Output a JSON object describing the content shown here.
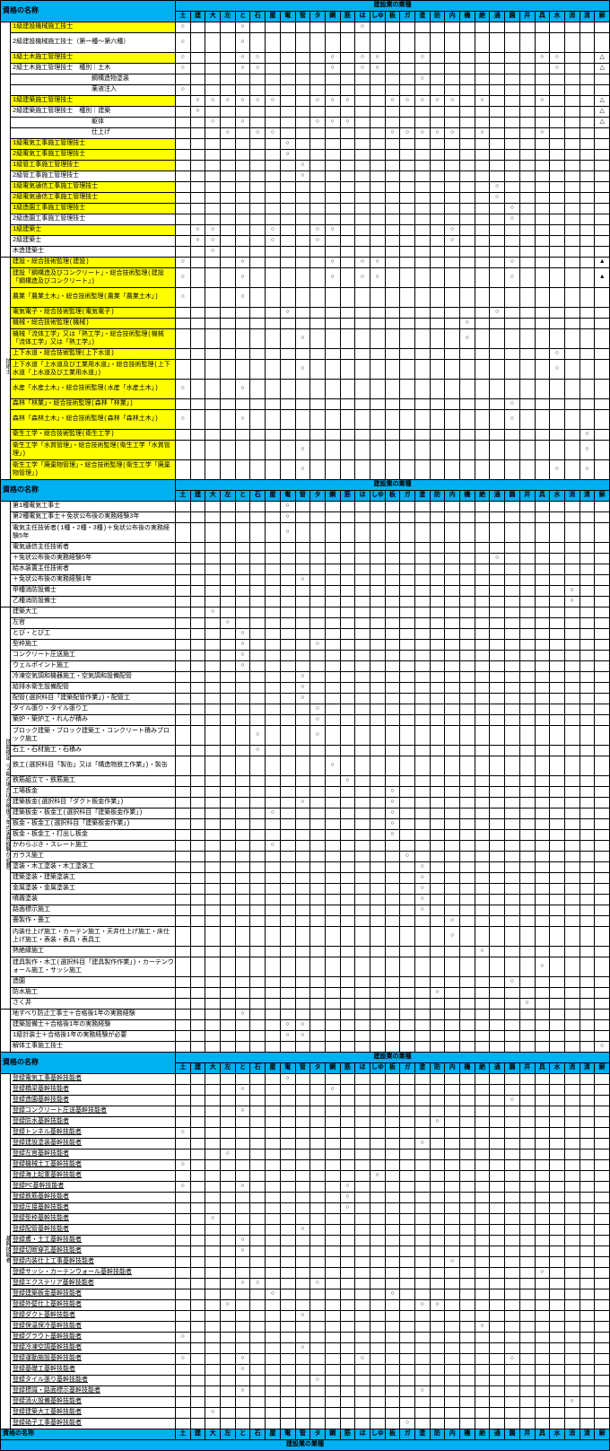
{
  "columns": [
    "土",
    "建",
    "大",
    "左",
    "と",
    "石",
    "屋",
    "電",
    "管",
    "タ",
    "鋼",
    "筋",
    "ほ",
    "しゆ",
    "板",
    "ガ",
    "塗",
    "防",
    "内",
    "機",
    "絶",
    "通",
    "園",
    "井",
    "具",
    "水",
    "消",
    "清",
    "解"
  ],
  "header_title": "建設業の業種",
  "header_name": "資格の名称",
  "side_labels": {
    "gijutsushi": "技術士",
    "ginou_kentei": "技能検定（２級の場合は合格後３年の実務経験が必要）",
    "kikan_ginou": "基幹技能者"
  },
  "sections": [
    {
      "rows": [
        {
          "name": "1級建設機械施工技士",
          "yellow": true,
          "c": {
            "0": "○",
            "4": "○",
            "12": "○"
          }
        },
        {
          "name": "2級建設機械施工技士（第一種～第六種）",
          "tall": true,
          "c": {
            "0": "○",
            "4": "○"
          }
        },
        {
          "name": "1級土木施工管理技士",
          "yellow": true,
          "c": {
            "0": "○",
            "4": "○",
            "5": "○",
            "10": "○",
            "12": "○",
            "13": "○",
            "16": "○",
            "24": "○",
            "25": "○",
            "28": "△"
          }
        },
        {
          "name": "2級土木施工管理技士",
          "sub": "種別",
          "subs": [
            {
              "n": "土木",
              "c": {
                "0": "○",
                "4": "○",
                "5": "○",
                "10": "○",
                "12": "○",
                "13": "○",
                "25": "○",
                "28": "△"
              }
            },
            {
              "n": "鋼構造物塗装",
              "c": {
                "16": "○"
              }
            },
            {
              "n": "薬液注入",
              "c": {
                "0": "○"
              }
            }
          ]
        },
        {
          "name": "1級建築施工管理技士",
          "yellow": true,
          "c": {
            "1": "○",
            "2": "○",
            "3": "○",
            "4": "○",
            "5": "○",
            "6": "○",
            "9": "○",
            "10": "○",
            "11": "○",
            "14": "○",
            "15": "○",
            "16": "○",
            "17": "○",
            "18": "○",
            "20": "○",
            "24": "○",
            "28": "△"
          }
        },
        {
          "name": "2級建築施工管理技士",
          "sub": "種別",
          "subs": [
            {
              "n": "建築",
              "c": {
                "1": "○",
                "28": "△"
              }
            },
            {
              "n": "躯体",
              "c": {
                "2": "○",
                "4": "○",
                "9": "○",
                "10": "○",
                "11": "○",
                "28": "△"
              }
            },
            {
              "n": "仕上げ",
              "c": {
                "3": "○",
                "5": "○",
                "6": "○",
                "14": "○",
                "15": "○",
                "16": "○",
                "17": "○",
                "18": "○",
                "20": "○",
                "24": "○"
              }
            }
          ]
        },
        {
          "name": "1級電気工事施工管理技士",
          "yellow": true,
          "c": {
            "7": "○"
          }
        },
        {
          "name": "2級電気工事施工管理技士",
          "yellow": true,
          "c": {
            "7": "○"
          }
        },
        {
          "name": "1級管工事施工管理技士",
          "yellow": true,
          "c": {
            "8": "○"
          }
        },
        {
          "name": "2級管工事施工管理技士",
          "c": {
            "8": "○"
          }
        },
        {
          "name": "1級電気通信工事施工管理技士",
          "yellow": true,
          "c": {
            "21": "○"
          }
        },
        {
          "name": "2級電気通信工事施工管理技士",
          "yellow": true,
          "c": {
            "21": "○"
          }
        },
        {
          "name": "1級造園工事施工管理技士",
          "yellow": true,
          "c": {
            "22": "○"
          }
        },
        {
          "name": "2級造園工事施工管理技士",
          "c": {
            "22": "○"
          }
        },
        {
          "name": "1級建築士",
          "yellow": true,
          "c": {
            "1": "○",
            "2": "○",
            "6": "○",
            "9": "○",
            "10": "○",
            "18": "○"
          }
        },
        {
          "name": "2級建築士",
          "c": {
            "1": "○",
            "2": "○",
            "6": "○",
            "9": "○",
            "18": "○"
          }
        },
        {
          "name": "木造建築士",
          "c": {
            "2": "○"
          }
        }
      ]
    },
    {
      "side": "gijutsushi",
      "rows": [
        {
          "name": "建設・総合技術監理(建設)",
          "yellow": true,
          "c": {
            "0": "○",
            "4": "○",
            "10": "○",
            "12": "○",
            "13": "○",
            "22": "○",
            "28": "▲"
          }
        },
        {
          "name": "建設「鋼構造及びコンクリート」・総合技術監理(建設「鋼構造及びコンクリート」)",
          "yellow": true,
          "tall": true,
          "wrap": true,
          "c": {
            "0": "○",
            "4": "○",
            "10": "○",
            "12": "○",
            "13": "○",
            "22": "○",
            "28": "▲"
          }
        },
        {
          "name": "農業「農業土木」・総合技術監理(農業「農業土木」)",
          "yellow": true,
          "tall": true,
          "wrap": true,
          "c": {
            "0": "○",
            "4": "○"
          }
        },
        {
          "name": "電気電子・総合技術監理(電気電子)",
          "yellow": true,
          "c": {
            "7": "○",
            "21": "○"
          }
        },
        {
          "name": "機械・総合技術監理(機械)",
          "yellow": true,
          "c": {
            "19": "○"
          }
        },
        {
          "name": "機械「流体工学」又は「熱工学」・総合技術監理(機械「流体工学」又は「熱工学」)",
          "yellow": true,
          "tall": true,
          "wrap": true,
          "c": {
            "8": "○",
            "19": "○"
          }
        },
        {
          "name": "上下水道・総合技術監理(上下水道)",
          "yellow": true,
          "c": {
            "25": "○"
          }
        },
        {
          "name": "上下水道「上水道及び工業用水道」・総合技術監理(上下水道「上水道及び工業用水道」)",
          "yellow": true,
          "tall": true,
          "wrap": true,
          "c": {
            "8": "○",
            "25": "○"
          }
        },
        {
          "name": "水産「水産土木」・総合技術監理(水産「水産土木」)",
          "yellow": true,
          "tall": true,
          "wrap": true,
          "c": {
            "0": "○",
            "4": "○"
          }
        },
        {
          "name": "森林「林業」・総合技術監理(森林「林業」)",
          "yellow": true,
          "c": {
            "22": "○"
          }
        },
        {
          "name": "森林「森林土木」・総合技術監理(森林「森林土木」)",
          "yellow": true,
          "tall": true,
          "wrap": true,
          "c": {
            "0": "○",
            "4": "○",
            "22": "○"
          }
        },
        {
          "name": "衛生工学・総合技術監理(衛生工学)",
          "yellow": true,
          "c": {
            "27": "○"
          }
        },
        {
          "name": "衛生工学「水質管理」・総合技術監理(衛生工学「水質管理」)",
          "yellow": true,
          "tall": true,
          "wrap": true,
          "c": {
            "8": "○",
            "27": "○"
          }
        },
        {
          "name": "衛生工学「廃棄物管理」・総合技術監理(衛生工学「廃棄物管理」)",
          "yellow": true,
          "tall": true,
          "wrap": true,
          "c": {
            "8": "○",
            "25": "○",
            "27": "○"
          }
        }
      ]
    },
    {
      "header": true,
      "rows": [
        {
          "name": "第1種電気工事士",
          "c": {
            "7": "○"
          }
        },
        {
          "name": "第2種電気工事士＋免状公布後の実務経験3年",
          "c": {
            "7": "○"
          }
        },
        {
          "name": "電気主任技術者(1種・2種・3種)＋免状公布後の実務経験5年",
          "tall": true,
          "wrap": true,
          "c": {
            "7": "○"
          }
        },
        {
          "name": "電気通信主任技術者",
          "c": {}
        },
        {
          "name": "＋免状公布後の実務経験5年",
          "c": {
            "21": "○"
          }
        },
        {
          "name": "給水装置主任技術者",
          "c": {}
        },
        {
          "name": "＋免状公布後の実務経験1年",
          "c": {
            "8": "○"
          }
        },
        {
          "name": "甲種消防設備士",
          "c": {
            "26": "○"
          }
        },
        {
          "name": "乙種消防設備士",
          "c": {
            "26": "○"
          }
        }
      ]
    },
    {
      "side": "ginou_kentei",
      "rows": [
        {
          "name": "建築大工",
          "c": {
            "2": "○"
          }
        },
        {
          "name": "左官",
          "c": {
            "3": "○"
          }
        },
        {
          "name": "とび・とび工",
          "c": {
            "4": "○"
          }
        },
        {
          "name": "型枠施工",
          "c": {
            "4": "○",
            "9": "○"
          }
        },
        {
          "name": "コンクリート圧送施工",
          "c": {
            "4": "○"
          }
        },
        {
          "name": "ウェルポイント施工",
          "c": {
            "4": "○"
          }
        },
        {
          "name": "冷凍空気調和機器施工・空気調和設備配管",
          "c": {
            "8": "○"
          }
        },
        {
          "name": "給排水衛生設備配管",
          "c": {
            "8": "○"
          }
        },
        {
          "name": "配管(選択科目「建築配管作業」)・配管工",
          "c": {
            "8": "○"
          }
        },
        {
          "name": "タイル張り・タイル張り工",
          "c": {
            "9": "○"
          }
        },
        {
          "name": "築炉・築炉工・れんが積み",
          "c": {
            "9": "○"
          }
        },
        {
          "name": "ブロック建築・ブロック建築工・コンクリート積みブロック施工",
          "tall": true,
          "wrap": true,
          "c": {
            "5": "○",
            "9": "○"
          }
        },
        {
          "name": "石工・石材施工・石積み",
          "c": {
            "5": "○"
          }
        },
        {
          "name": "鉄工(選択科目「製缶」又は「構造物鉄工作業」)・製缶",
          "tall": true,
          "wrap": true,
          "c": {
            "10": "○"
          }
        },
        {
          "name": "鉄筋組立て・鉄筋施工",
          "c": {
            "11": "○"
          }
        },
        {
          "name": "工場板金",
          "c": {
            "14": "○"
          }
        },
        {
          "name": "建築板金(選択科目「ダクト板金作業」)",
          "c": {
            "8": "○",
            "14": "○"
          }
        },
        {
          "name": "建築板金・板金工(選択科目「建築板金作業」)",
          "c": {
            "6": "○",
            "14": "○"
          }
        },
        {
          "name": "板金・板金工(選択科目「建築板金作業」)",
          "c": {
            "14": "○"
          }
        },
        {
          "name": "板金・板金工・打出し板金",
          "c": {
            "14": "○"
          }
        },
        {
          "name": "かわらぶき・スレート施工",
          "c": {
            "6": "○"
          }
        },
        {
          "name": "ガラス施工",
          "c": {
            "15": "○"
          }
        },
        {
          "name": "塗装・木工塗装・木工塗装工",
          "c": {
            "16": "○"
          }
        },
        {
          "name": "建築塗装・建築塗装工",
          "c": {
            "16": "○"
          }
        },
        {
          "name": "金属塗装・金属塗装工",
          "c": {
            "16": "○"
          }
        },
        {
          "name": "噴霧塗装",
          "c": {
            "16": "○"
          }
        },
        {
          "name": "路面標示施工",
          "c": {
            "16": "○"
          }
        },
        {
          "name": "畳製作・畳工",
          "c": {
            "18": "○"
          }
        },
        {
          "name": "内装仕上げ施工・カーテン施工・天井仕上げ施工・床仕上げ施工・表装・表具・表具工",
          "tall": true,
          "wrap": true,
          "c": {
            "18": "○"
          }
        },
        {
          "name": "熱絶縁施工",
          "c": {
            "20": "○"
          }
        },
        {
          "name": "建具製作・木工(選択科目「建具製作作業」)・カーテンウォール施工・サッシ施工",
          "tall": true,
          "wrap": true,
          "c": {
            "24": "○"
          }
        },
        {
          "name": "造園",
          "c": {
            "22": "○"
          }
        },
        {
          "name": "防水施工",
          "c": {
            "17": "○"
          }
        },
        {
          "name": "さく井",
          "c": {
            "23": "○"
          }
        }
      ]
    },
    {
      "rows": [
        {
          "name": "地すべり防止工事士＋合格後1年の実務経験",
          "c": {
            "4": "○"
          }
        },
        {
          "name": "建築設備士＋合格後1年の実務経験",
          "c": {
            "7": "○",
            "8": "○"
          }
        },
        {
          "name": "1級計装士＋合格後1年の実務経験が必要",
          "c": {
            "7": "○",
            "8": "○"
          }
        },
        {
          "name": "解体工事施工技士",
          "c": {
            "28": "○"
          }
        }
      ]
    },
    {
      "header": true,
      "side": "kikan_ginou",
      "rows": [
        {
          "name": "登録電気工事基幹技能者",
          "u": true,
          "c": {
            "7": "○"
          }
        },
        {
          "name": "登録橋梁基幹技能者",
          "u": true,
          "c": {
            "4": "○",
            "10": "○"
          }
        },
        {
          "name": "登録造園基幹技能者",
          "u": true,
          "c": {
            "22": "○"
          }
        },
        {
          "name": "登録コンクリート圧送基幹技能者",
          "u": true,
          "c": {
            "4": "○"
          }
        },
        {
          "name": "登録防水基幹技能者",
          "u": true,
          "c": {
            "17": "○"
          }
        },
        {
          "name": "登録トンネル基幹技能者",
          "u": true,
          "c": {
            "0": "○"
          }
        },
        {
          "name": "登録建設塗装基幹技能者",
          "u": true,
          "c": {
            "16": "○"
          }
        },
        {
          "name": "登録左官基幹技能者",
          "u": true,
          "c": {
            "3": "○"
          }
        },
        {
          "name": "登録機械土工基幹技能者",
          "u": true,
          "c": {
            "0": "○"
          }
        },
        {
          "name": "登録海上起重基幹技能者",
          "u": true,
          "c": {
            "13": "○"
          }
        },
        {
          "name": "登録PC基幹技能者",
          "u": true,
          "c": {
            "0": "○",
            "4": "○",
            "11": "○"
          }
        },
        {
          "name": "登録鉄筋基幹技能者",
          "u": true,
          "c": {
            "11": "○"
          }
        },
        {
          "name": "登録圧接基幹技能者",
          "u": true,
          "c": {
            "11": "○"
          }
        },
        {
          "name": "登録型枠基幹技能者",
          "u": true,
          "c": {
            "2": "○"
          }
        },
        {
          "name": "登録配管基幹技能者",
          "u": true,
          "c": {
            "8": "○"
          }
        },
        {
          "name": "登録鳶・土工基幹技能者",
          "u": true,
          "c": {
            "4": "○"
          }
        },
        {
          "name": "登録切断穿孔基幹技能者",
          "u": true,
          "c": {
            "4": "○"
          }
        },
        {
          "name": "登録内装仕上工事基幹技能者",
          "u": true,
          "c": {
            "18": "○"
          }
        },
        {
          "name": "登録サッシ・カーテンウォール基幹技能者",
          "u": true,
          "c": {
            "24": "○"
          }
        },
        {
          "name": "登録エクステリア基幹技能者",
          "u": true,
          "c": {
            "4": "○",
            "5": "○",
            "9": "○"
          }
        },
        {
          "name": "登録建築板金基幹技能者",
          "u": true,
          "c": {
            "6": "○",
            "14": "○"
          }
        },
        {
          "name": "登録外壁仕上基幹技能者",
          "u": true,
          "c": {
            "3": "○",
            "16": "○",
            "17": "○"
          }
        },
        {
          "name": "登録ダクト基幹技能者",
          "u": true,
          "c": {
            "8": "○"
          }
        },
        {
          "name": "登録保温保冷基幹技能者",
          "u": true,
          "c": {
            "20": "○"
          }
        },
        {
          "name": "登録グラウト基幹技能者",
          "u": true,
          "c": {
            "0": "○"
          }
        },
        {
          "name": "登録冷凍空調基幹技能者",
          "u": true,
          "c": {
            "8": "○"
          }
        },
        {
          "name": "登録運動施設基幹技能者",
          "u": true,
          "c": {
            "0": "○",
            "4": "○",
            "12": "○",
            "22": "○"
          }
        },
        {
          "name": "登録基礎工基幹技能者",
          "u": true,
          "c": {
            "4": "○"
          }
        },
        {
          "name": "登録タイル張り基幹技能者",
          "u": true,
          "c": {
            "9": "○"
          }
        },
        {
          "name": "登録標識・路面標示基幹技能者",
          "u": true,
          "c": {
            "4": "○",
            "16": "○"
          }
        },
        {
          "name": "登録消火設備基幹技能者",
          "u": true,
          "c": {
            "26": "○"
          }
        },
        {
          "name": "登録建築大工基幹技能者",
          "u": true,
          "c": {
            "2": "○"
          }
        },
        {
          "name": "登録硝子工事基幹技能者",
          "u": true,
          "c": {
            "15": "○"
          }
        }
      ]
    },
    {
      "footer_only": true
    }
  ]
}
